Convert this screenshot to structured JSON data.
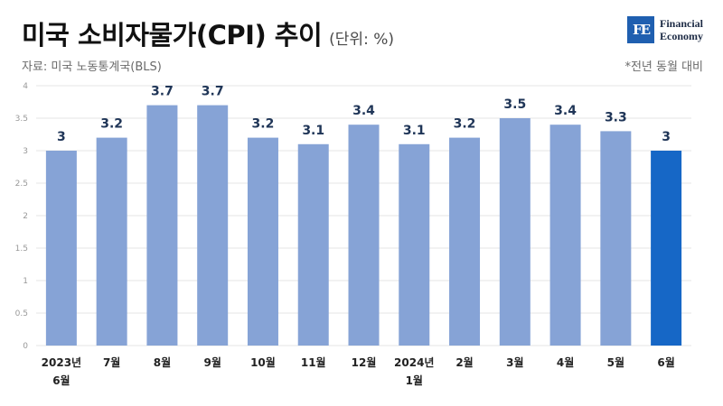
{
  "header": {
    "title": "미국 소비자물가(CPI) 추이",
    "unit": "(단위: %)",
    "source": "자료: 미국 노동통계국(BLS)",
    "note": "*전년 동월 대비"
  },
  "logo": {
    "mark": "FE",
    "line1": "Financial",
    "line2": "Economy"
  },
  "colors": {
    "bar": "#86a3d6",
    "highlight": "#1667c6",
    "grid": "#e6e6e6",
    "value_label": "#1f3557"
  },
  "chart_data": {
    "type": "bar",
    "categories": [
      [
        "2023년",
        "6월"
      ],
      [
        "7월"
      ],
      [
        "8월"
      ],
      [
        "9월"
      ],
      [
        "10월"
      ],
      [
        "11월"
      ],
      [
        "12월"
      ],
      [
        "2024년",
        "1월"
      ],
      [
        "2월"
      ],
      [
        "3월"
      ],
      [
        "4월"
      ],
      [
        "5월"
      ],
      [
        "6월"
      ]
    ],
    "values": [
      3,
      3.2,
      3.7,
      3.7,
      3.2,
      3.1,
      3.4,
      3.1,
      3.2,
      3.5,
      3.4,
      3.3,
      3
    ],
    "value_labels": [
      "3",
      "3.2",
      "3.7",
      "3.7",
      "3.2",
      "3.1",
      "3.4",
      "3.1",
      "3.2",
      "3.5",
      "3.4",
      "3.3",
      "3"
    ],
    "highlight_index": 12,
    "ylim": [
      0,
      4
    ],
    "yticks": [
      "0",
      "0.5",
      "1",
      "1.5",
      "2",
      "2.5",
      "3",
      "3.5",
      "4"
    ],
    "grid": true
  }
}
